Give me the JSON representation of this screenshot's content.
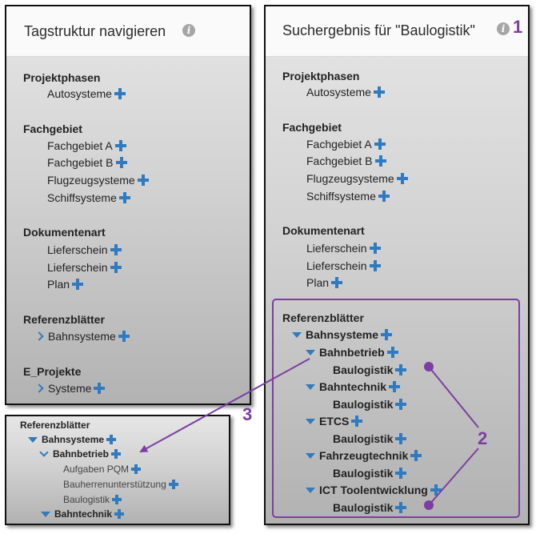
{
  "left_panel": {
    "title": "Tagstruktur navigieren",
    "info_icon": "i",
    "groups": {
      "projektphasen": {
        "label": "Projektphasen",
        "items": [
          "Autosysteme"
        ]
      },
      "fachgebiet": {
        "label": "Fachgebiet",
        "items": [
          "Fachgebiet A",
          "Fachgebiet B",
          "Flugzeugsysteme",
          "Schiffsysteme"
        ]
      },
      "dokumentenart": {
        "label": "Dokumentenart",
        "items": [
          "Lieferschein",
          "Lieferschein",
          "Plan"
        ]
      },
      "referenzblaetter": {
        "label": "Referenzblätter",
        "items": [
          "Bahnsysteme"
        ]
      },
      "e_projekte": {
        "label": "E_Projekte",
        "items": [
          "Systeme"
        ]
      }
    }
  },
  "right_panel": {
    "title": "Suchergebnis für \"Baulogistik\"",
    "info_icon": "i",
    "groups": {
      "projektphasen": {
        "label": "Projektphasen",
        "items": [
          "Autosysteme"
        ]
      },
      "fachgebiet": {
        "label": "Fachgebiet",
        "items": [
          "Fachgebiet A",
          "Fachgebiet B",
          "Flugzeugsysteme",
          "Schiffsysteme"
        ]
      },
      "dokumentenart": {
        "label": "Dokumentenart",
        "items": [
          "Lieferschein",
          "Lieferschein",
          "Plan"
        ]
      },
      "referenzblaetter": {
        "label": "Referenzblätter",
        "root": "Bahnsysteme",
        "children": [
          {
            "label": "Bahnbetrieb",
            "child": "Baulogistik"
          },
          {
            "label": "Bahntechnik",
            "child": "Baulogistik"
          },
          {
            "label": "ETCS",
            "child": "Baulogistik"
          },
          {
            "label": "Fahrzeugtechnik",
            "child": "Baulogistik"
          },
          {
            "label": "ICT Toolentwicklung",
            "child": "Baulogistik"
          }
        ]
      }
    }
  },
  "inset_panel": {
    "group_label": "Referenzblätter",
    "root": "Bahnsysteme",
    "expanded": "Bahnbetrieb",
    "sub_items": [
      "Aufgaben PQM",
      "Bauherrenunterstützung",
      "Baulogistik"
    ],
    "next": "Bahntechnik"
  },
  "callouts": {
    "one": "1",
    "two": "2",
    "three": "3"
  },
  "colors": {
    "accent_blue": "#2f7ac0",
    "callout_purple": "#7b3fa2"
  },
  "icons": {
    "info": "info-icon",
    "add": "plus-icon",
    "expand": "chevron-right-icon",
    "expanded": "triangle-down-icon"
  }
}
